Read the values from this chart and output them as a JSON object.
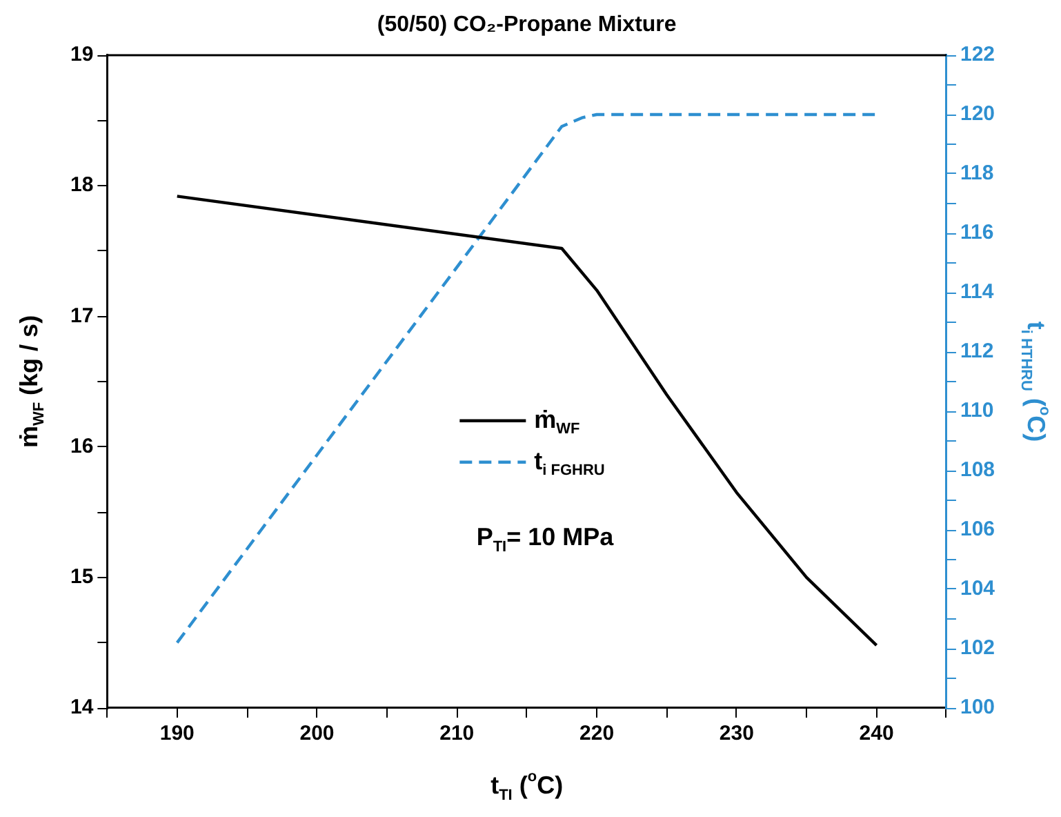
{
  "chart_data": {
    "type": "line",
    "title": "(50/50) CO₂-Propane Mixture",
    "xlabel": "t$_{TI}$ ($^{o}$C)",
    "ylabel": "ṁ$_{WF}$ (kg / s)",
    "y2label": "t$_{i HTHRU}$ ($^{o}$C)",
    "annotations": [
      "P$_{TI}$= 10 MPa"
    ],
    "series": [
      {
        "name": "ṁ$_{WF}$",
        "color": "#000000",
        "line_style": "solid",
        "x": [
          190,
          217.5,
          220,
          225,
          230,
          235,
          240
        ],
        "values": [
          17.92,
          17.52,
          17.2,
          16.4,
          15.65,
          15.0,
          14.48
        ]
      },
      {
        "name": "t$_{i FGHRU}$",
        "color": "#2e8fd0",
        "line_style": "dashed",
        "axis": "y2",
        "x": [
          190,
          217.5,
          219,
          220,
          240
        ],
        "values": [
          102.2,
          119.6,
          119.9,
          120,
          120
        ]
      }
    ],
    "xlim": [
      185,
      245
    ],
    "xticks": [
      {
        "value": 185,
        "label": null
      },
      190,
      {
        "value": 195,
        "label": null
      },
      200,
      {
        "value": 205,
        "label": null
      },
      210,
      {
        "value": 215,
        "label": null
      },
      220,
      {
        "value": 225,
        "label": null
      },
      230,
      {
        "value": 235,
        "label": null
      },
      240,
      {
        "value": 245,
        "label": null
      }
    ],
    "ylim": [
      14,
      19
    ],
    "yticks": [
      14,
      {
        "value": 14.5,
        "label": null
      },
      15,
      {
        "value": 15.5,
        "label": null
      },
      16,
      {
        "value": 16.5,
        "label": null
      },
      17,
      {
        "value": 17.5,
        "label": null
      },
      18,
      {
        "value": 18.5,
        "label": null
      },
      19
    ],
    "y2lim": [
      100,
      122
    ],
    "y2ticks": [
      100,
      {
        "value": 101,
        "label": null
      },
      102,
      {
        "value": 103,
        "label": null
      },
      104,
      {
        "value": 105,
        "label": null
      },
      106,
      {
        "value": 107,
        "label": null
      },
      108,
      {
        "value": 109,
        "label": null
      },
      110,
      {
        "value": 111,
        "label": null
      },
      112,
      {
        "value": 113,
        "label": null
      },
      114,
      {
        "value": 115,
        "label": null
      },
      116,
      {
        "value": 117,
        "label": null
      },
      118,
      {
        "value": 119,
        "label": null
      },
      120,
      {
        "value": 121,
        "label": null
      },
      122
    ],
    "grid": false,
    "legend": "center",
    "marker": "none"
  }
}
